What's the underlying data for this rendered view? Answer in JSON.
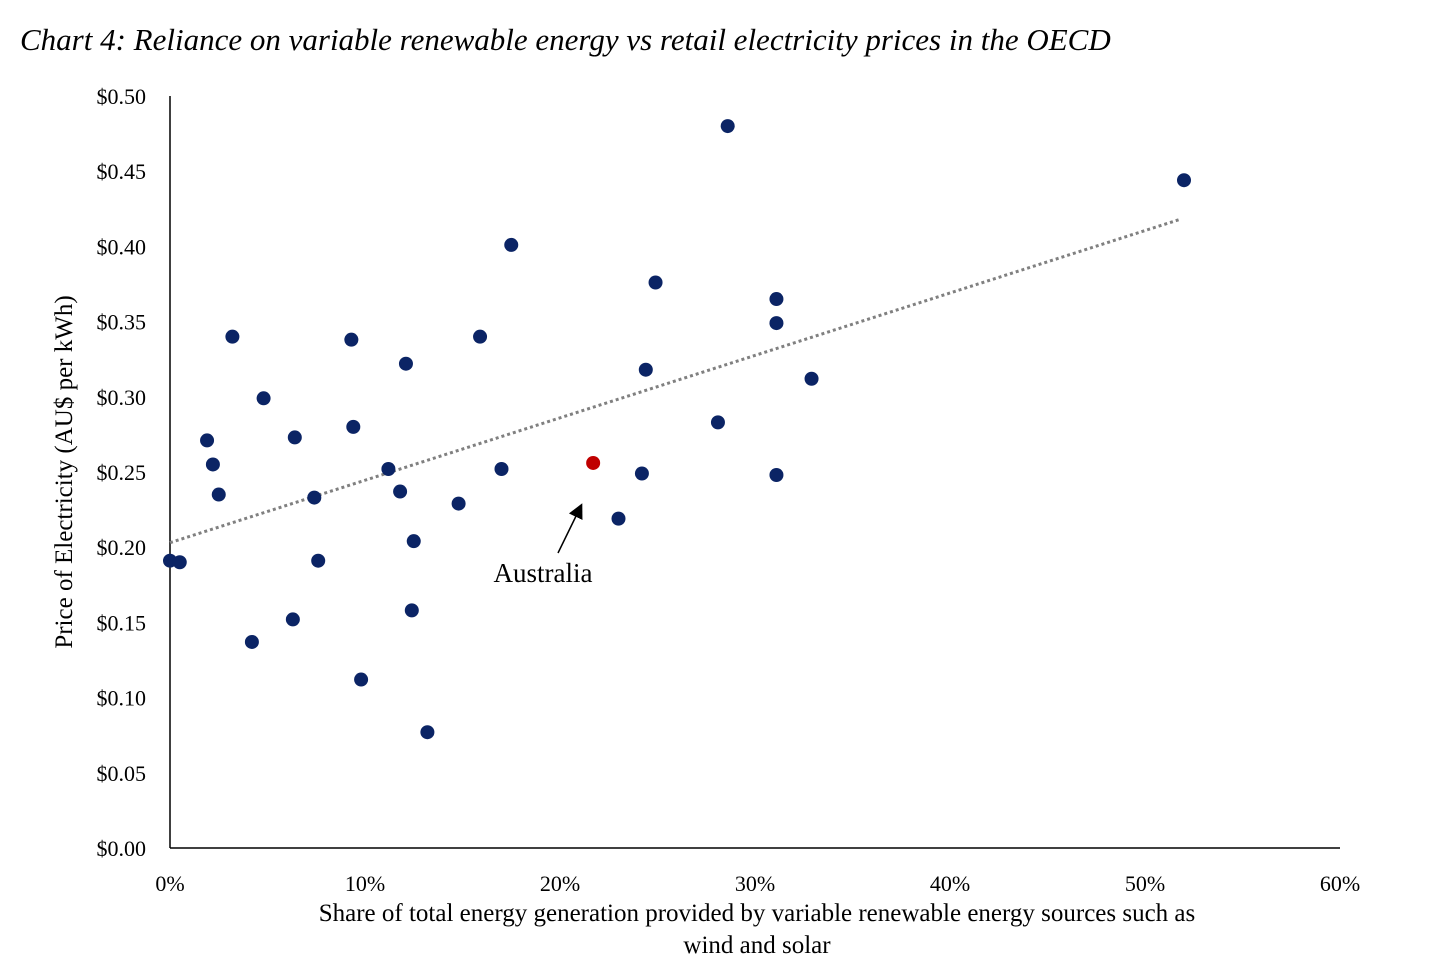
{
  "chart_data": {
    "type": "scatter",
    "title": "Chart 4: Reliance on variable renewable energy vs retail electricity prices in the OECD",
    "xlabel_lines": [
      "Share of total energy generation provided by variable renewable energy sources such as",
      "wind and solar"
    ],
    "ylabel": "Price of Electricity (AU$ per kWh)",
    "xlim": [
      0,
      60
    ],
    "ylim": [
      0,
      0.5
    ],
    "x_ticks": [
      0,
      10,
      20,
      30,
      40,
      50,
      60
    ],
    "x_tick_labels": [
      "0%",
      "10%",
      "20%",
      "30%",
      "40%",
      "50%",
      "60%"
    ],
    "y_ticks": [
      0,
      0.05,
      0.1,
      0.15,
      0.2,
      0.25,
      0.3,
      0.35,
      0.4,
      0.45,
      0.5
    ],
    "y_tick_labels": [
      "$0.00",
      "$0.05",
      "$0.10",
      "$0.15",
      "$0.20",
      "$0.25",
      "$0.30",
      "$0.35",
      "$0.40",
      "$0.45",
      "$0.50"
    ],
    "grid": false,
    "colors": {
      "point": "#0b2465",
      "highlight": "#c00000",
      "trend": "#808080"
    },
    "points": [
      {
        "x": 0.0,
        "y": 0.191
      },
      {
        "x": 0.5,
        "y": 0.19
      },
      {
        "x": 1.9,
        "y": 0.271
      },
      {
        "x": 2.2,
        "y": 0.255
      },
      {
        "x": 2.5,
        "y": 0.235
      },
      {
        "x": 3.2,
        "y": 0.34
      },
      {
        "x": 4.2,
        "y": 0.137
      },
      {
        "x": 4.8,
        "y": 0.299
      },
      {
        "x": 6.3,
        "y": 0.152
      },
      {
        "x": 6.4,
        "y": 0.273
      },
      {
        "x": 7.4,
        "y": 0.233
      },
      {
        "x": 7.6,
        "y": 0.191
      },
      {
        "x": 9.3,
        "y": 0.338
      },
      {
        "x": 9.4,
        "y": 0.28
      },
      {
        "x": 9.8,
        "y": 0.112
      },
      {
        "x": 11.2,
        "y": 0.252
      },
      {
        "x": 11.8,
        "y": 0.237
      },
      {
        "x": 12.1,
        "y": 0.322
      },
      {
        "x": 12.5,
        "y": 0.204
      },
      {
        "x": 12.4,
        "y": 0.158
      },
      {
        "x": 13.2,
        "y": 0.077
      },
      {
        "x": 14.8,
        "y": 0.229
      },
      {
        "x": 15.9,
        "y": 0.34
      },
      {
        "x": 17.0,
        "y": 0.252
      },
      {
        "x": 17.5,
        "y": 0.401
      },
      {
        "x": 23.0,
        "y": 0.219
      },
      {
        "x": 24.2,
        "y": 0.249
      },
      {
        "x": 24.4,
        "y": 0.318
      },
      {
        "x": 24.9,
        "y": 0.376
      },
      {
        "x": 28.1,
        "y": 0.283
      },
      {
        "x": 28.6,
        "y": 0.48
      },
      {
        "x": 31.1,
        "y": 0.365
      },
      {
        "x": 31.1,
        "y": 0.349
      },
      {
        "x": 31.1,
        "y": 0.248
      },
      {
        "x": 32.9,
        "y": 0.312
      },
      {
        "x": 52.0,
        "y": 0.444
      }
    ],
    "highlight": {
      "label": "Australia",
      "x": 21.7,
      "y": 0.256
    },
    "trendline": {
      "type": "linear",
      "x": [
        0,
        51.8
      ],
      "y": [
        0.203,
        0.418
      ]
    }
  }
}
